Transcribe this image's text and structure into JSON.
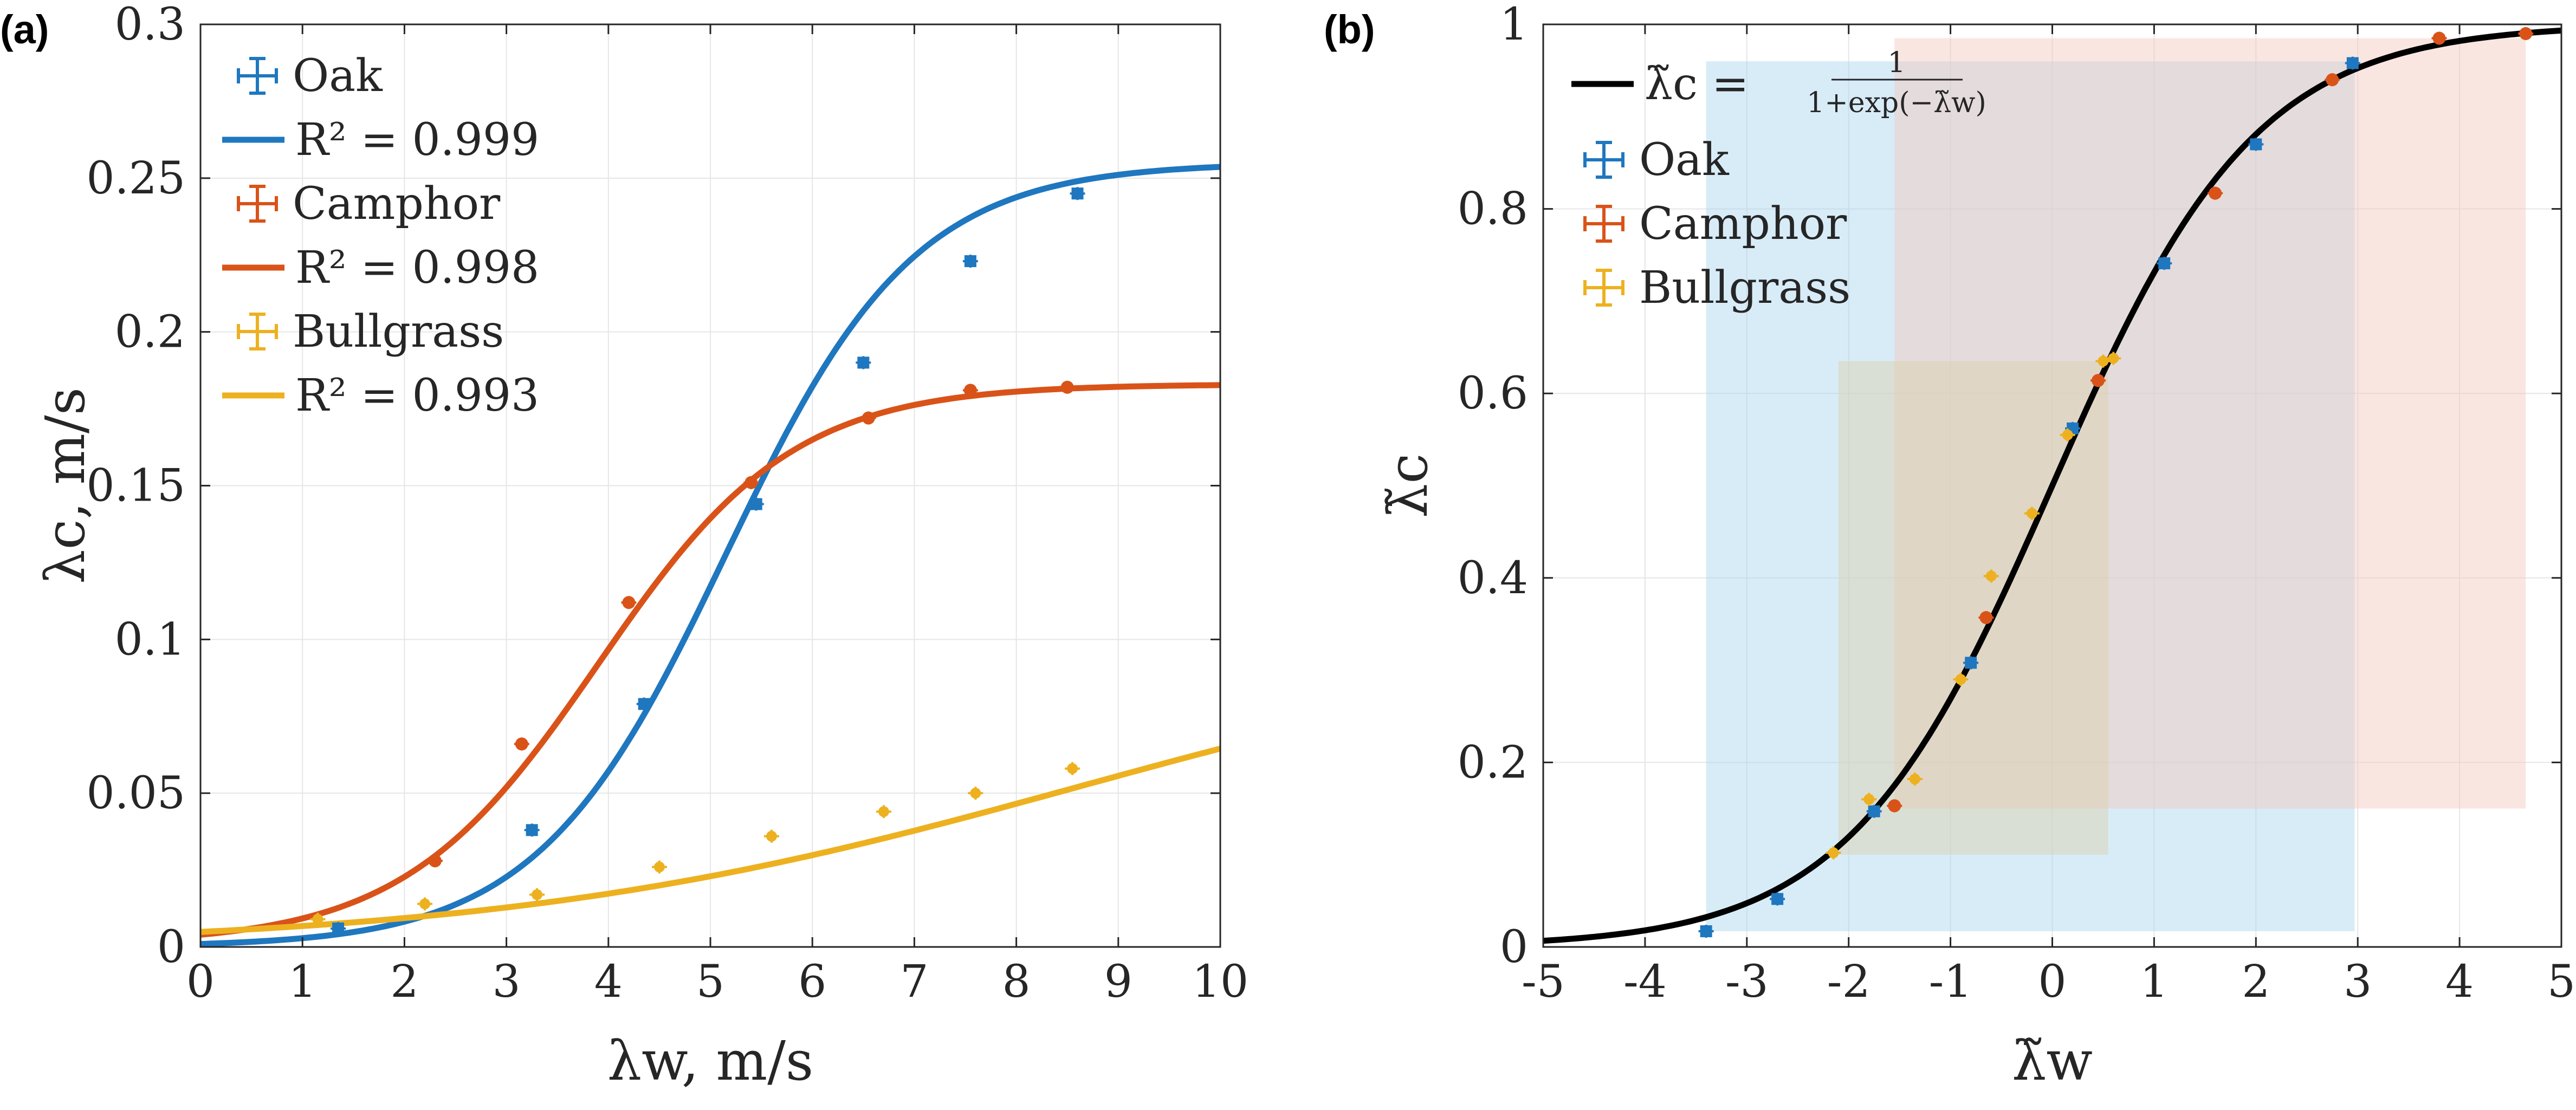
{
  "chart_data": [
    {
      "panel": "(a)",
      "type": "scatter",
      "xlabel": "λw, m/s",
      "ylabel": "λc, m/s",
      "xlim": [
        0,
        10
      ],
      "ylim": [
        0,
        0.3
      ],
      "xticks": [
        "0",
        "1",
        "2",
        "3",
        "4",
        "5",
        "6",
        "7",
        "8",
        "9",
        "10"
      ],
      "yticks": [
        "0",
        "0.05",
        "0.1",
        "0.15",
        "0.2",
        "0.25",
        "0.3"
      ],
      "grid": true,
      "legend_position": "top-left",
      "series": [
        {
          "name": "Oak",
          "color": "#1f77bf",
          "marker": "square",
          "points": [
            [
              1.35,
              0.006
            ],
            [
              3.25,
              0.038
            ],
            [
              4.35,
              0.079
            ],
            [
              5.45,
              0.144
            ],
            [
              6.5,
              0.19
            ],
            [
              7.55,
              0.223
            ],
            [
              8.6,
              0.245
            ]
          ],
          "fit": {
            "label": "R² = 0.999",
            "model": "logistic",
            "L": 0.255,
            "k": 1.08,
            "x0": 5.15,
            "c": 0
          }
        },
        {
          "name": "Camphor",
          "color": "#d95319",
          "marker": "circle",
          "points": [
            [
              2.3,
              0.028
            ],
            [
              3.15,
              0.066
            ],
            [
              4.2,
              0.112
            ],
            [
              5.4,
              0.151
            ],
            [
              6.55,
              0.172
            ],
            [
              7.55,
              0.181
            ],
            [
              8.5,
              0.182
            ]
          ],
          "fit": {
            "label": "R² = 0.998",
            "model": "logistic",
            "L": 0.182,
            "k": 1.05,
            "x0": 3.9,
            "c": 0.001
          }
        },
        {
          "name": "Bullgrass",
          "color": "#edb120",
          "marker": "cross",
          "points": [
            [
              1.15,
              0.009
            ],
            [
              2.2,
              0.014
            ],
            [
              3.3,
              0.017
            ],
            [
              4.5,
              0.026
            ],
            [
              5.6,
              0.036
            ],
            [
              6.7,
              0.044
            ],
            [
              7.6,
              0.05
            ],
            [
              8.55,
              0.058
            ]
          ],
          "fit": {
            "label": "R² = 0.993",
            "model": "logistic",
            "L": 0.104,
            "k": 0.35,
            "x0": 8.6,
            "c": 0
          }
        }
      ]
    },
    {
      "panel": "(b)",
      "type": "scatter",
      "xlabel": "λ̃w",
      "ylabel": "λ̃c",
      "xlim": [
        -5,
        5
      ],
      "ylim": [
        0,
        1
      ],
      "xticks": [
        "-5",
        "-4",
        "-3",
        "-2",
        "-1",
        "0",
        "1",
        "2",
        "3",
        "4",
        "5"
      ],
      "yticks": [
        "0",
        "0.2",
        "0.4",
        "0.6",
        "0.8",
        "1"
      ],
      "grid": true,
      "legend_position": "top-left",
      "curve": {
        "label": "λ̃c =",
        "formula_num": "1",
        "formula_den": "1+exp(−λ̃w)",
        "color": "#000000"
      },
      "regions": [
        {
          "series": "Oak",
          "color": "#a9d4f0",
          "x": [
            -3.4,
            2.97
          ],
          "y": [
            0.017,
            0.96
          ]
        },
        {
          "series": "Camphor",
          "color": "#f3c7bd",
          "x": [
            -1.55,
            4.65
          ],
          "y": [
            0.15,
            0.985
          ]
        },
        {
          "series": "Bullgrass",
          "color": "#dcd0a8",
          "x": [
            -2.1,
            0.55
          ],
          "y": [
            0.1,
            0.635
          ]
        }
      ],
      "series": [
        {
          "name": "Oak",
          "color": "#1f77bf",
          "marker": "square",
          "points": [
            [
              -3.4,
              0.017
            ],
            [
              -2.7,
              0.052
            ],
            [
              -1.75,
              0.147
            ],
            [
              -0.8,
              0.308
            ],
            [
              0.2,
              0.562
            ],
            [
              1.1,
              0.741
            ],
            [
              2.0,
              0.87
            ],
            [
              2.95,
              0.958
            ]
          ]
        },
        {
          "name": "Camphor",
          "color": "#d95319",
          "marker": "circle",
          "points": [
            [
              -1.55,
              0.153
            ],
            [
              -0.65,
              0.357
            ],
            [
              0.45,
              0.614
            ],
            [
              1.6,
              0.817
            ],
            [
              2.75,
              0.94
            ],
            [
              3.8,
              0.985
            ],
            [
              4.65,
              0.99
            ]
          ]
        },
        {
          "name": "Bullgrass",
          "color": "#edb120",
          "marker": "cross",
          "points": [
            [
              -2.15,
              0.102
            ],
            [
              -1.8,
              0.16
            ],
            [
              -1.35,
              0.182
            ],
            [
              -0.9,
              0.29
            ],
            [
              -0.6,
              0.402
            ],
            [
              -0.2,
              0.47
            ],
            [
              0.15,
              0.555
            ],
            [
              0.5,
              0.635
            ],
            [
              0.6,
              0.638
            ]
          ]
        }
      ]
    }
  ]
}
